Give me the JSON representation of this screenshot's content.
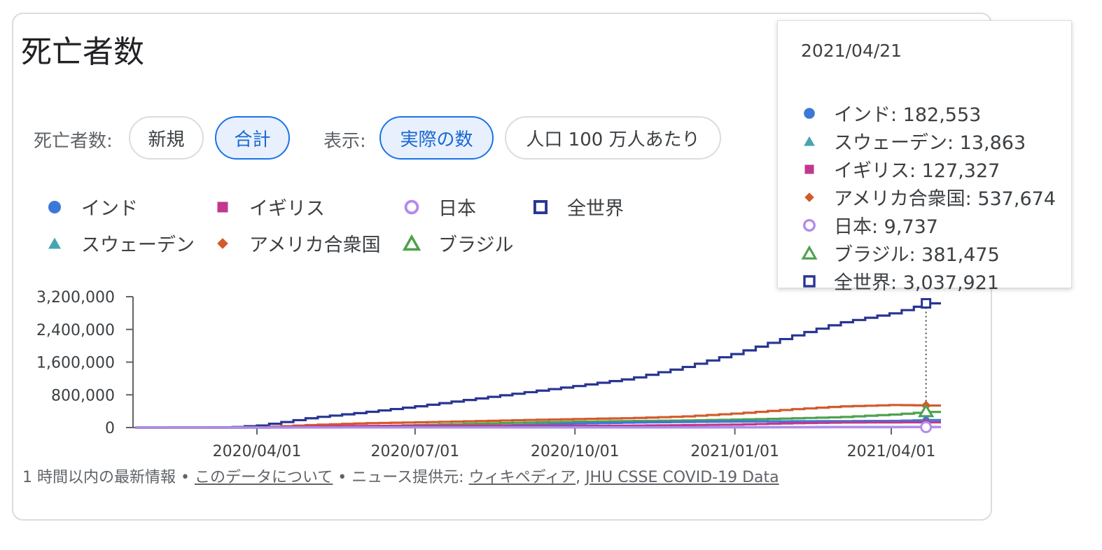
{
  "title": "死亡者数",
  "controls": {
    "metric_label": "死亡者数:",
    "metric_options": [
      "新規",
      "合計"
    ],
    "metric_selected": "合計",
    "display_label": "表示:",
    "display_options": [
      "実際の数",
      "人口 100 万人あたり"
    ],
    "display_selected": "実際の数"
  },
  "legend": [
    {
      "name": "インド",
      "color": "#3c78d8",
      "marker": "circle"
    },
    {
      "name": "イギリス",
      "color": "#c2378f",
      "marker": "square"
    },
    {
      "name": "日本",
      "color": "#b38bec",
      "marker": "circle-open"
    },
    {
      "name": "全世界",
      "color": "#283593",
      "marker": "square-open"
    },
    {
      "name": "スウェーデン",
      "color": "#46a5b0",
      "marker": "triangle"
    },
    {
      "name": "アメリカ合衆国",
      "color": "#d25a2c",
      "marker": "diamond"
    },
    {
      "name": "ブラジル",
      "color": "#4ea24e",
      "marker": "triangle-open"
    }
  ],
  "tooltip": {
    "date": "2021/04/21",
    "rows": [
      {
        "label": "インド: 182,553",
        "color": "#3c78d8",
        "marker": "circle"
      },
      {
        "label": "スウェーデン: 13,863",
        "color": "#46a5b0",
        "marker": "triangle"
      },
      {
        "label": "イギリス: 127,327",
        "color": "#c2378f",
        "marker": "square"
      },
      {
        "label": "アメリカ合衆国: 537,674",
        "color": "#d25a2c",
        "marker": "diamond"
      },
      {
        "label": "日本: 9,737",
        "color": "#b38bec",
        "marker": "circle-open"
      },
      {
        "label": "ブラジル: 381,475",
        "color": "#4ea24e",
        "marker": "triangle-open"
      },
      {
        "label": "全世界: 3,037,921",
        "color": "#283593",
        "marker": "square-open"
      }
    ]
  },
  "footer": {
    "prefix": "1 時間以内の最新情報 • ",
    "about_link": "このデータについて",
    "middle": " • ニュース提供元: ",
    "source1": "ウィキペディア",
    "sep": ", ",
    "source2": "JHU CSSE COVID-19 Data"
  },
  "chart_data": {
    "type": "line",
    "title": "死亡者数",
    "x_ticks": [
      "2020/04/01",
      "2020/07/01",
      "2020/10/01",
      "2021/01/01",
      "2021/04/01"
    ],
    "y_ticks": [
      "0",
      "800,000",
      "1,600,000",
      "2,400,000",
      "3,200,000"
    ],
    "ylim": [
      0,
      3200000
    ],
    "x_start": "2020/01/22",
    "x_end": "2021/04/21",
    "highlight_date": "2021/04/21",
    "series": [
      {
        "name": "全世界",
        "color": "#283593",
        "marker": "square-open",
        "points": [
          [
            "2020/01/22",
            0
          ],
          [
            "2020/03/01",
            3000
          ],
          [
            "2020/03/15",
            6500
          ],
          [
            "2020/04/01",
            50000
          ],
          [
            "2020/04/15",
            135000
          ],
          [
            "2020/05/01",
            240000
          ],
          [
            "2020/06/01",
            375000
          ],
          [
            "2020/07/01",
            520000
          ],
          [
            "2020/08/01",
            690000
          ],
          [
            "2020/09/01",
            860000
          ],
          [
            "2020/10/01",
            1020000
          ],
          [
            "2020/11/01",
            1200000
          ],
          [
            "2020/12/01",
            1470000
          ],
          [
            "2021/01/01",
            1820000
          ],
          [
            "2021/02/01",
            2230000
          ],
          [
            "2021/03/01",
            2560000
          ],
          [
            "2021/04/01",
            2800000
          ],
          [
            "2021/04/21",
            3037921
          ]
        ]
      },
      {
        "name": "アメリカ合衆国",
        "color": "#d25a2c",
        "marker": "diamond",
        "points": [
          [
            "2020/01/22",
            0
          ],
          [
            "2020/03/15",
            100
          ],
          [
            "2020/04/01",
            5000
          ],
          [
            "2020/05/01",
            65000
          ],
          [
            "2020/06/01",
            105000
          ],
          [
            "2020/07/01",
            128000
          ],
          [
            "2020/08/01",
            155000
          ],
          [
            "2020/09/01",
            184000
          ],
          [
            "2020/10/01",
            208000
          ],
          [
            "2020/11/01",
            231000
          ],
          [
            "2020/12/01",
            270000
          ],
          [
            "2021/01/01",
            346000
          ],
          [
            "2021/02/01",
            445000
          ],
          [
            "2021/03/01",
            515000
          ],
          [
            "2021/04/01",
            552000
          ],
          [
            "2021/04/21",
            537674
          ]
        ]
      },
      {
        "name": "ブラジル",
        "color": "#4ea24e",
        "marker": "triangle-open",
        "points": [
          [
            "2020/01/22",
            0
          ],
          [
            "2020/04/01",
            300
          ],
          [
            "2020/05/01",
            6000
          ],
          [
            "2020/06/01",
            30000
          ],
          [
            "2020/07/01",
            60000
          ],
          [
            "2020/08/01",
            93000
          ],
          [
            "2020/09/01",
            122000
          ],
          [
            "2020/10/01",
            144000
          ],
          [
            "2020/11/01",
            159000
          ],
          [
            "2020/12/01",
            173000
          ],
          [
            "2021/01/01",
            196000
          ],
          [
            "2021/02/01",
            224000
          ],
          [
            "2021/03/01",
            255000
          ],
          [
            "2021/04/01",
            320000
          ],
          [
            "2021/04/21",
            381475
          ]
        ]
      },
      {
        "name": "インド",
        "color": "#3c78d8",
        "marker": "circle",
        "points": [
          [
            "2020/01/22",
            0
          ],
          [
            "2020/04/01",
            50
          ],
          [
            "2020/05/01",
            1100
          ],
          [
            "2020/06/01",
            5600
          ],
          [
            "2020/07/01",
            17500
          ],
          [
            "2020/08/01",
            37000
          ],
          [
            "2020/09/01",
            65000
          ],
          [
            "2020/10/01",
            99000
          ],
          [
            "2020/11/01",
            122000
          ],
          [
            "2020/12/01",
            137000
          ],
          [
            "2021/01/01",
            149000
          ],
          [
            "2021/02/01",
            154000
          ],
          [
            "2021/03/01",
            157000
          ],
          [
            "2021/04/01",
            163000
          ],
          [
            "2021/04/21",
            182553
          ]
        ]
      },
      {
        "name": "イギリス",
        "color": "#c2378f",
        "marker": "square",
        "points": [
          [
            "2020/01/22",
            0
          ],
          [
            "2020/03/15",
            50
          ],
          [
            "2020/04/01",
            2400
          ],
          [
            "2020/05/01",
            27000
          ],
          [
            "2020/06/01",
            39000
          ],
          [
            "2020/07/01",
            43900
          ],
          [
            "2020/08/01",
            46000
          ],
          [
            "2020/09/01",
            41500
          ],
          [
            "2020/10/01",
            42100
          ],
          [
            "2020/11/01",
            46600
          ],
          [
            "2020/12/01",
            59000
          ],
          [
            "2021/01/01",
            74000
          ],
          [
            "2021/02/01",
            106000
          ],
          [
            "2021/03/01",
            123000
          ],
          [
            "2021/04/01",
            126800
          ],
          [
            "2021/04/21",
            127327
          ]
        ]
      },
      {
        "name": "スウェーデン",
        "color": "#46a5b0",
        "marker": "triangle",
        "points": [
          [
            "2020/01/22",
            0
          ],
          [
            "2020/04/01",
            180
          ],
          [
            "2020/05/01",
            2700
          ],
          [
            "2020/06/01",
            4400
          ],
          [
            "2020/07/01",
            5400
          ],
          [
            "2020/08/01",
            5700
          ],
          [
            "2020/09/01",
            5800
          ],
          [
            "2020/10/01",
            5900
          ],
          [
            "2020/11/01",
            6000
          ],
          [
            "2020/12/01",
            6700
          ],
          [
            "2021/01/01",
            8700
          ],
          [
            "2021/02/01",
            11500
          ],
          [
            "2021/03/01",
            12900
          ],
          [
            "2021/04/01",
            13400
          ],
          [
            "2021/04/21",
            13863
          ]
        ]
      },
      {
        "name": "日本",
        "color": "#b38bec",
        "marker": "circle-open",
        "points": [
          [
            "2020/01/22",
            0
          ],
          [
            "2020/04/01",
            60
          ],
          [
            "2020/05/01",
            450
          ],
          [
            "2020/06/01",
            900
          ],
          [
            "2020/07/01",
            980
          ],
          [
            "2020/08/01",
            1010
          ],
          [
            "2020/09/01",
            1300
          ],
          [
            "2020/10/01",
            1570
          ],
          [
            "2020/11/01",
            1750
          ],
          [
            "2020/12/01",
            2130
          ],
          [
            "2021/01/01",
            3460
          ],
          [
            "2021/02/01",
            5790
          ],
          [
            "2021/03/01",
            7840
          ],
          [
            "2021/04/01",
            9170
          ],
          [
            "2021/04/21",
            9737
          ]
        ]
      }
    ]
  }
}
